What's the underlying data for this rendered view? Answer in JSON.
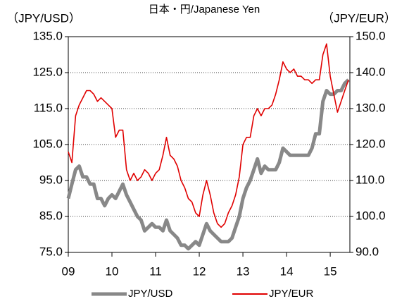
{
  "chart_data": {
    "type": "line",
    "title": "日本・円/Japanese Yen",
    "y_label": "（JPY/USD）",
    "y2_label": "（JPY/EUR）",
    "x": [
      2009,
      2009.083,
      2009.167,
      2009.25,
      2009.333,
      2009.417,
      2009.5,
      2009.583,
      2009.667,
      2009.75,
      2009.833,
      2009.917,
      2010,
      2010.083,
      2010.167,
      2010.25,
      2010.333,
      2010.417,
      2010.5,
      2010.583,
      2010.667,
      2010.75,
      2010.833,
      2010.917,
      2011,
      2011.083,
      2011.167,
      2011.25,
      2011.333,
      2011.417,
      2011.5,
      2011.583,
      2011.667,
      2011.75,
      2011.833,
      2011.917,
      2012,
      2012.083,
      2012.167,
      2012.25,
      2012.333,
      2012.417,
      2012.5,
      2012.583,
      2012.667,
      2012.75,
      2012.833,
      2012.917,
      2013,
      2013.083,
      2013.167,
      2013.25,
      2013.333,
      2013.417,
      2013.5,
      2013.583,
      2013.667,
      2013.75,
      2013.833,
      2013.917,
      2014,
      2014.083,
      2014.167,
      2014.25,
      2014.333,
      2014.417,
      2014.5,
      2014.583,
      2014.667,
      2014.75,
      2014.833,
      2014.917,
      2015,
      2015.083,
      2015.167,
      2015.25,
      2015.333,
      2015.417
    ],
    "series": [
      {
        "name": "JPY/USD",
        "color": "#888888",
        "values": [
          90,
          94,
          98,
          99,
          96,
          96,
          94,
          94,
          90,
          90,
          88,
          90,
          91,
          90,
          92,
          94,
          91,
          89,
          87,
          85,
          84,
          81,
          82,
          83,
          82,
          82,
          81,
          84,
          81,
          80,
          79,
          77,
          77,
          76,
          77,
          78,
          77,
          80,
          83,
          81,
          80,
          79,
          78,
          78,
          78,
          79,
          82,
          85,
          90,
          93,
          95,
          98,
          101,
          97,
          99,
          98,
          98,
          98,
          100,
          104,
          103,
          102,
          102,
          102,
          102,
          102,
          102,
          104,
          108,
          108,
          117,
          120,
          119,
          119,
          120,
          120,
          122,
          123
        ]
      },
      {
        "name": "JPY/EUR",
        "color": "#e00000",
        "axis": "y2",
        "values": [
          118,
          115,
          128,
          131,
          133,
          135,
          135,
          134,
          132,
          133,
          132,
          131,
          130,
          122,
          124,
          124,
          113,
          110,
          112,
          110,
          111,
          113,
          112,
          110,
          112,
          113,
          117,
          122,
          117,
          116,
          114,
          110,
          108,
          105,
          104,
          101,
          100,
          106,
          110,
          106,
          101,
          98,
          97,
          98,
          101,
          103,
          106,
          111,
          120,
          122,
          122,
          128,
          130,
          128,
          130,
          130,
          131,
          134,
          138,
          143,
          141,
          140,
          141,
          139,
          139,
          138,
          138,
          137,
          138,
          138,
          145,
          148,
          139,
          134,
          129,
          132,
          135,
          138
        ]
      }
    ],
    "xlim": [
      2009,
      2015.45
    ],
    "xticks": [
      {
        "value": 2009,
        "label": "09"
      },
      {
        "value": 2010,
        "label": "10"
      },
      {
        "value": 2011,
        "label": "11"
      },
      {
        "value": 2012,
        "label": "12"
      },
      {
        "value": 2013,
        "label": "13"
      },
      {
        "value": 2014,
        "label": "14"
      },
      {
        "value": 2015,
        "label": "15"
      }
    ],
    "ylim": [
      75,
      135
    ],
    "yticks": [
      {
        "value": 75,
        "label": "75.0"
      },
      {
        "value": 85,
        "label": "85.0"
      },
      {
        "value": 95,
        "label": "95.0"
      },
      {
        "value": 105,
        "label": "105.0"
      },
      {
        "value": 115,
        "label": "115.0"
      },
      {
        "value": 125,
        "label": "125.0"
      },
      {
        "value": 135,
        "label": "135.0"
      }
    ],
    "y2lim": [
      90,
      150
    ],
    "y2ticks": [
      {
        "value": 90,
        "label": "90.0"
      },
      {
        "value": 100,
        "label": "100.0"
      },
      {
        "value": 110,
        "label": "110.0"
      },
      {
        "value": 120,
        "label": "120.0"
      },
      {
        "value": 130,
        "label": "130.0"
      },
      {
        "value": 140,
        "label": "140.0"
      },
      {
        "value": 150,
        "label": "150.0"
      }
    ],
    "grid": true,
    "legend": "bottom"
  }
}
